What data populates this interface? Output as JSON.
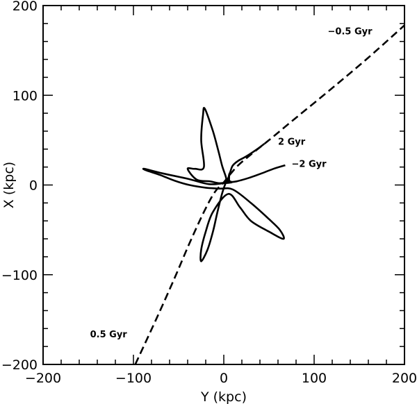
{
  "chart_data": {
    "type": "line",
    "title": "",
    "xlabel": "Y (kpc)",
    "ylabel": "X (kpc)",
    "xlim": [
      -200,
      200
    ],
    "ylim": [
      -200,
      200
    ],
    "x_ticks": [
      -200,
      -100,
      0,
      100,
      200
    ],
    "y_ticks": [
      -200,
      -100,
      0,
      100,
      200
    ],
    "x_tick_labels": [
      "−200",
      "−100",
      "0",
      "100",
      "200"
    ],
    "y_tick_labels": [
      "−200",
      "−100",
      "0",
      "100",
      "200"
    ],
    "grid": false,
    "series": [
      {
        "style": "dashed",
        "color": "#000000",
        "points": [
          [
            -98,
            -200
          ],
          [
            -75,
            -150
          ],
          [
            -55,
            -105
          ],
          [
            -38,
            -65
          ],
          [
            -22,
            -30
          ],
          [
            -10,
            -8
          ],
          [
            0,
            3
          ],
          [
            8,
            13
          ],
          [
            16,
            22
          ],
          [
            30,
            34
          ],
          [
            50,
            50
          ],
          [
            80,
            75
          ],
          [
            120,
            108
          ],
          [
            160,
            142
          ],
          [
            200,
            178
          ]
        ]
      },
      {
        "style": "solid",
        "color": "#000000",
        "points": [
          [
            68,
            22
          ],
          [
            55,
            18
          ],
          [
            42,
            13
          ],
          [
            28,
            8
          ],
          [
            14,
            4
          ],
          [
            5,
            3
          ],
          [
            -5,
            2
          ],
          [
            -15,
            4
          ],
          [
            -30,
            6
          ],
          [
            -40,
            18
          ],
          [
            -32,
            18
          ],
          [
            -22,
            20
          ],
          [
            -25,
            50
          ],
          [
            -23,
            78
          ],
          [
            -21,
            85
          ],
          [
            -12,
            60
          ],
          [
            -6,
            38
          ],
          [
            -2,
            22
          ],
          [
            2,
            10
          ],
          [
            4,
            3
          ],
          [
            6,
            12
          ],
          [
            6,
            5
          ],
          [
            9,
            3
          ],
          [
            0,
            2
          ],
          [
            -17,
            1
          ],
          [
            -40,
            7
          ],
          [
            -68,
            13
          ],
          [
            -88,
            18
          ],
          [
            -85,
            16
          ],
          [
            -70,
            11
          ],
          [
            -55,
            5
          ],
          [
            -38,
            0
          ],
          [
            -20,
            -3
          ],
          [
            -5,
            -4
          ],
          [
            10,
            -5
          ],
          [
            30,
            -20
          ],
          [
            50,
            -38
          ],
          [
            62,
            -50
          ],
          [
            66,
            -60
          ],
          [
            50,
            -52
          ],
          [
            30,
            -40
          ],
          [
            18,
            -25
          ],
          [
            5,
            -10
          ],
          [
            -12,
            -30
          ],
          [
            -20,
            -52
          ],
          [
            -25,
            -72
          ],
          [
            -25,
            -85
          ],
          [
            -18,
            -72
          ],
          [
            -12,
            -52
          ],
          [
            -7,
            -30
          ],
          [
            -2,
            -10
          ],
          [
            2,
            2
          ],
          [
            5,
            8
          ],
          [
            6,
            12
          ],
          [
            7,
            14
          ],
          [
            9,
            20
          ],
          [
            11,
            23
          ],
          [
            16,
            27
          ],
          [
            25,
            32
          ],
          [
            37,
            40
          ],
          [
            45,
            46
          ]
        ]
      }
    ],
    "annotations": [
      {
        "text": "−0.5 Gyr",
        "x": 115,
        "y": 168
      },
      {
        "text": "2 Gyr",
        "x": 60,
        "y": 45
      },
      {
        "text": "−2 Gyr",
        "x": 75,
        "y": 20
      },
      {
        "text": "0.5 Gyr",
        "x": -148,
        "y": -170
      }
    ]
  }
}
